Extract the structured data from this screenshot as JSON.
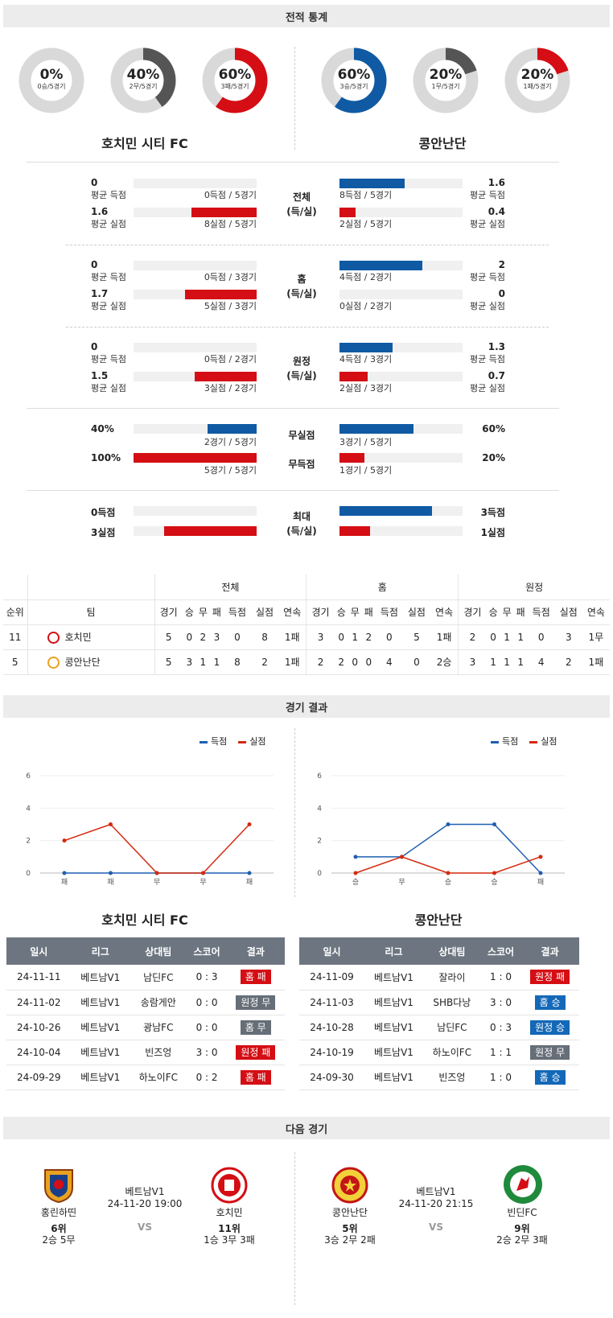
{
  "sections": {
    "stats": "전적 통계",
    "results": "경기 결과",
    "next": "다음 경기"
  },
  "teams": {
    "home": "호치민 시티 FC",
    "away": "콩안난단"
  },
  "donuts": {
    "home": [
      {
        "pct": "0%",
        "sub": "0승/5경기",
        "value": 0,
        "color": "#d9d9d9"
      },
      {
        "pct": "40%",
        "sub": "2무/5경기",
        "value": 40,
        "color": "#555555"
      },
      {
        "pct": "60%",
        "sub": "3패/5경기",
        "value": 60,
        "color": "#d40e14"
      }
    ],
    "away": [
      {
        "pct": "60%",
        "sub": "3승/5경기",
        "value": 60,
        "color": "#0f5aa3"
      },
      {
        "pct": "20%",
        "sub": "1무/5경기",
        "value": 20,
        "color": "#555555"
      },
      {
        "pct": "20%",
        "sub": "1패/5경기",
        "value": 20,
        "color": "#d40e14"
      }
    ]
  },
  "stat_groups": [
    {
      "label1": "전체",
      "label2": "(득/실)",
      "home": [
        {
          "value": "0",
          "label": "평균 득점",
          "note": "0득점 / 5경기",
          "frac": 0,
          "color": "blue"
        },
        {
          "value": "1.6",
          "label": "평균 실점",
          "note": "8실점 / 5경기",
          "frac": 0.53,
          "color": "red"
        }
      ],
      "away": [
        {
          "value": "1.6",
          "label": "평균 득점",
          "note": "8득점 / 5경기",
          "frac": 0.53,
          "color": "blue"
        },
        {
          "value": "0.4",
          "label": "평균 실점",
          "note": "2실점 / 5경기",
          "frac": 0.13,
          "color": "red"
        }
      ]
    },
    {
      "label1": "홈",
      "label2": "(득/실)",
      "home": [
        {
          "value": "0",
          "label": "평균 득점",
          "note": "0득점 / 3경기",
          "frac": 0,
          "color": "blue"
        },
        {
          "value": "1.7",
          "label": "평균 실점",
          "note": "5실점 / 3경기",
          "frac": 0.58,
          "color": "red"
        }
      ],
      "away": [
        {
          "value": "2",
          "label": "평균 득점",
          "note": "4득점 / 2경기",
          "frac": 0.67,
          "color": "blue"
        },
        {
          "value": "0",
          "label": "평균 실점",
          "note": "0실점 / 2경기",
          "frac": 0,
          "color": "red"
        }
      ]
    },
    {
      "label1": "원정",
      "label2": "(득/실)",
      "home": [
        {
          "value": "0",
          "label": "평균 득점",
          "note": "0득점 / 2경기",
          "frac": 0,
          "color": "blue"
        },
        {
          "value": "1.5",
          "label": "평균 실점",
          "note": "3실점 / 2경기",
          "frac": 0.5,
          "color": "red"
        }
      ],
      "away": [
        {
          "value": "1.3",
          "label": "평균 득점",
          "note": "4득점 / 3경기",
          "frac": 0.43,
          "color": "blue"
        },
        {
          "value": "0.7",
          "label": "평균 실점",
          "note": "2실점 / 3경기",
          "frac": 0.23,
          "color": "red"
        }
      ]
    }
  ],
  "clean": {
    "label_clean": "무실점",
    "label_blank": "무득점",
    "home_clean": {
      "value": "40%",
      "note": "2경기 / 5경기",
      "frac": 0.4
    },
    "home_blank": {
      "value": "100%",
      "note": "5경기 / 5경기",
      "frac": 1.0
    },
    "away_clean": {
      "value": "60%",
      "note": "3경기 / 5경기",
      "frac": 0.6
    },
    "away_blank": {
      "value": "20%",
      "note": "1경기 / 5경기",
      "frac": 0.2
    }
  },
  "max": {
    "label1": "최대",
    "label2": "(득/실)",
    "home_scored": {
      "value": "0득점",
      "frac": 0
    },
    "home_conceded": {
      "value": "3실점",
      "frac": 0.75
    },
    "away_scored": {
      "value": "3득점",
      "frac": 0.75
    },
    "away_conceded": {
      "value": "1실점",
      "frac": 0.25
    }
  },
  "standings": {
    "groups": [
      "전체",
      "홈",
      "원정"
    ],
    "cols": [
      "순위",
      "팀",
      "경기",
      "승",
      "무",
      "패",
      "득점",
      "실점",
      "연속"
    ],
    "rows": [
      {
        "rank": "11",
        "team": "호치민",
        "all": [
          "5",
          "0",
          "2",
          "3",
          "0",
          "8",
          "1패"
        ],
        "home": [
          "3",
          "0",
          "1",
          "2",
          "0",
          "5",
          "1패"
        ],
        "away": [
          "2",
          "0",
          "1",
          "1",
          "0",
          "3",
          "1무"
        ]
      },
      {
        "rank": "5",
        "team": "콩안난단",
        "all": [
          "5",
          "3",
          "1",
          "1",
          "8",
          "2",
          "1패"
        ],
        "home": [
          "2",
          "2",
          "0",
          "0",
          "4",
          "0",
          "2승"
        ],
        "away": [
          "3",
          "1",
          "1",
          "1",
          "4",
          "2",
          "1패"
        ]
      }
    ]
  },
  "legend": {
    "scored": "득점",
    "conceded": "실점",
    "scored_color": "#1f5fb0",
    "conceded_color": "#d32a0f"
  },
  "chart_data": [
    {
      "type": "line",
      "categories": [
        "패",
        "패",
        "무",
        "무",
        "패"
      ],
      "ylim": [
        0,
        6
      ],
      "yticks": [
        0,
        2,
        4,
        6
      ],
      "series": [
        {
          "name": "득점",
          "values": [
            0,
            0,
            0,
            0,
            0
          ]
        },
        {
          "name": "실점",
          "values": [
            2,
            3,
            0,
            0,
            3
          ]
        }
      ]
    },
    {
      "type": "line",
      "categories": [
        "승",
        "무",
        "승",
        "승",
        "패"
      ],
      "ylim": [
        0,
        6
      ],
      "yticks": [
        0,
        2,
        4,
        6
      ],
      "series": [
        {
          "name": "득점",
          "values": [
            1,
            1,
            3,
            3,
            0
          ]
        },
        {
          "name": "실점",
          "values": [
            0,
            1,
            0,
            0,
            1
          ]
        }
      ]
    }
  ],
  "results_cols": [
    "일시",
    "리그",
    "상대팀",
    "스코어",
    "결과"
  ],
  "results": {
    "home": [
      {
        "date": "24-11-11",
        "league": "베트남V1",
        "opp": "남딘FC",
        "score": "0 : 3",
        "result": "홈 패",
        "badge": "red"
      },
      {
        "date": "24-11-02",
        "league": "베트남V1",
        "opp": "송람게안",
        "score": "0 : 0",
        "result": "원정 무",
        "badge": "grey"
      },
      {
        "date": "24-10-26",
        "league": "베트남V1",
        "opp": "광남FC",
        "score": "0 : 0",
        "result": "홈 무",
        "badge": "grey"
      },
      {
        "date": "24-10-04",
        "league": "베트남V1",
        "opp": "빈즈엉",
        "score": "3 : 0",
        "result": "원정 패",
        "badge": "red"
      },
      {
        "date": "24-09-29",
        "league": "베트남V1",
        "opp": "하노이FC",
        "score": "0 : 2",
        "result": "홈 패",
        "badge": "red"
      }
    ],
    "away": [
      {
        "date": "24-11-09",
        "league": "베트남V1",
        "opp": "잘라이",
        "score": "1 : 0",
        "result": "원정 패",
        "badge": "red"
      },
      {
        "date": "24-11-03",
        "league": "베트남V1",
        "opp": "SHB다낭",
        "score": "3 : 0",
        "result": "홈 승",
        "badge": "blue"
      },
      {
        "date": "24-10-28",
        "league": "베트남V1",
        "opp": "남딘FC",
        "score": "0 : 3",
        "result": "원정 승",
        "badge": "blue"
      },
      {
        "date": "24-10-19",
        "league": "베트남V1",
        "opp": "하노이FC",
        "score": "1 : 1",
        "result": "원정 무",
        "badge": "grey"
      },
      {
        "date": "24-09-30",
        "league": "베트남V1",
        "opp": "빈즈엉",
        "score": "1 : 0",
        "result": "홈 승",
        "badge": "blue"
      }
    ]
  },
  "next": {
    "home": {
      "team_a": "홍린하띤",
      "rank_a": "6위",
      "rec_a": "2승 5무",
      "league": "베트남V1",
      "datetime": "24-11-20 19:00",
      "vs": "VS",
      "team_b": "호치민",
      "rank_b": "11위",
      "rec_b": "1승 3무 3패"
    },
    "away": {
      "team_a": "콩안난단",
      "rank_a": "5위",
      "rec_a": "3승 2무 2패",
      "league": "베트남V1",
      "datetime": "24-11-20 21:15",
      "vs": "VS",
      "team_b": "빈딘FC",
      "rank_b": "9위",
      "rec_b": "2승 2무 3패"
    }
  }
}
